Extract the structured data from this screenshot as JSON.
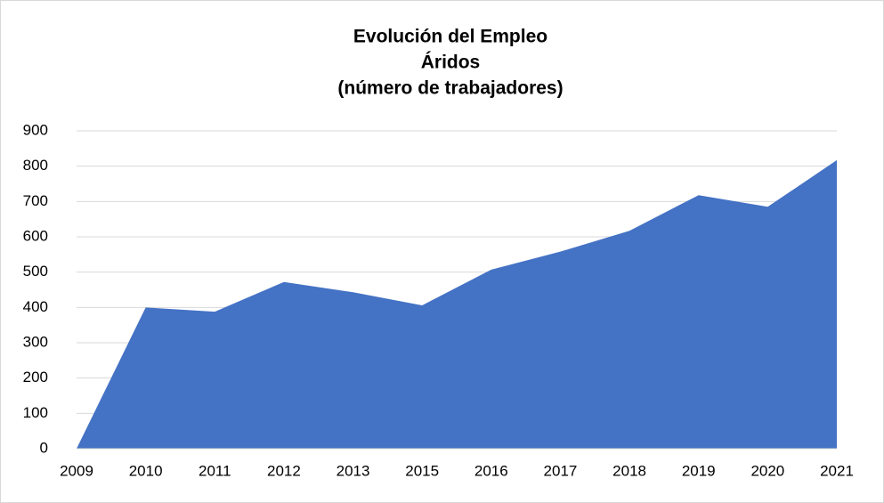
{
  "chart_data": {
    "type": "area",
    "title": [
      "Evolución del Empleo",
      "Áridos",
      "(número de trabajadores)"
    ],
    "categories": [
      "2009",
      "2010",
      "2011",
      "2012",
      "2013",
      "2015",
      "2016",
      "2017",
      "2018",
      "2019",
      "2020",
      "2021"
    ],
    "values": [
      0,
      400,
      388,
      472,
      443,
      406,
      507,
      558,
      617,
      718,
      685,
      817
    ],
    "color": "#4472c4",
    "ylim": [
      0,
      900
    ],
    "yticks": [
      0,
      100,
      200,
      300,
      400,
      500,
      600,
      700,
      800,
      900
    ],
    "grid": true
  }
}
